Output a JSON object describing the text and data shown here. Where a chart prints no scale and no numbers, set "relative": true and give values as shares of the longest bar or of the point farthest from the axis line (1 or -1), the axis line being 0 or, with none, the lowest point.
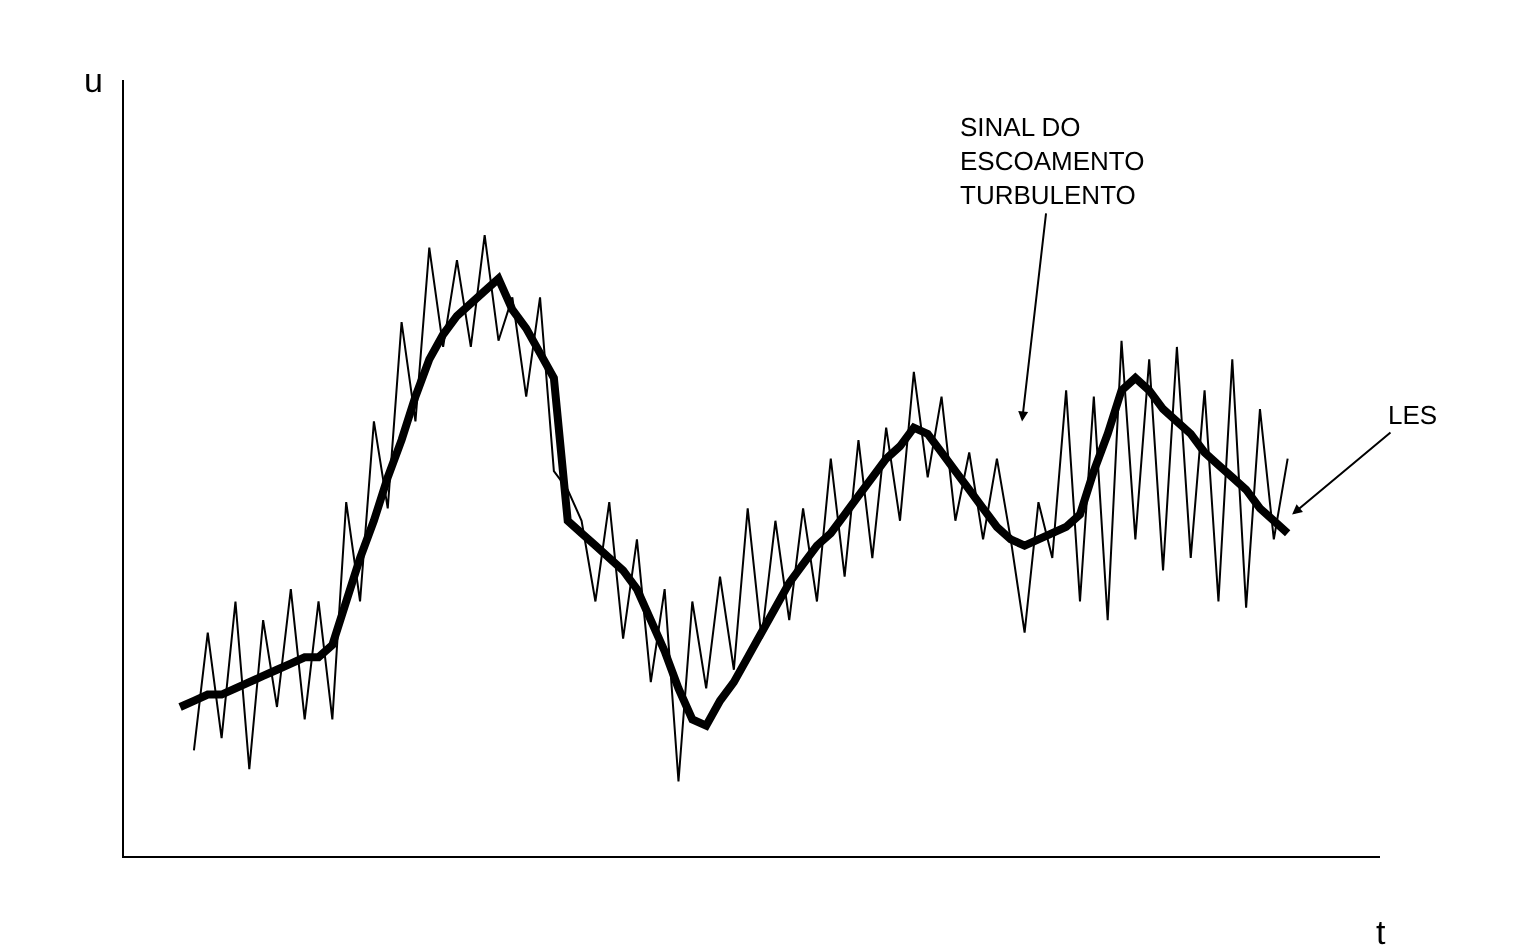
{
  "chart_data": {
    "type": "line",
    "relative": true,
    "xlabel": "t",
    "ylabel": "u",
    "legend": false,
    "marker": "none",
    "categories": [
      null,
      null,
      null,
      null,
      null,
      null,
      null,
      null,
      null,
      null,
      null,
      null,
      null,
      null,
      null,
      null,
      null,
      null,
      null,
      null,
      null,
      null,
      null,
      null,
      null,
      null,
      null,
      null,
      null,
      null,
      null,
      null,
      null,
      null,
      null,
      null,
      null,
      null,
      null,
      null,
      null,
      null,
      null,
      null,
      null,
      null,
      null,
      null,
      null,
      null,
      null,
      null,
      null,
      null,
      null,
      null,
      null,
      null,
      null,
      null,
      null,
      null,
      null,
      null,
      null,
      null,
      null,
      null,
      null,
      null,
      null,
      null,
      null,
      null,
      null,
      null,
      null,
      null,
      null,
      null,
      null
    ],
    "series": [
      {
        "color": "#000000",
        "line_style": "solid",
        "values": [
          null,
          0.17,
          0.36,
          0.19,
          0.41,
          0.14,
          0.38,
          0.24,
          0.43,
          0.22,
          0.41,
          0.22,
          0.57,
          0.41,
          0.7,
          0.56,
          0.86,
          0.7,
          0.98,
          0.82,
          0.96,
          0.82,
          1.0,
          0.83,
          0.9,
          0.74,
          0.9,
          0.62,
          0.59,
          0.54,
          0.41,
          0.57,
          0.35,
          0.51,
          0.28,
          0.43,
          0.12,
          0.41,
          0.27,
          0.45,
          0.3,
          0.56,
          0.35,
          0.54,
          0.38,
          0.56,
          0.41,
          0.64,
          0.45,
          0.67,
          0.48,
          0.69,
          0.54,
          0.78,
          0.61,
          0.74,
          0.54,
          0.65,
          0.51,
          0.64,
          0.51,
          0.36,
          0.57,
          0.48,
          0.75,
          0.41,
          0.74,
          0.38,
          0.83,
          0.51,
          0.8,
          0.46,
          0.82,
          0.48,
          0.75,
          0.41,
          0.8,
          0.4,
          0.72,
          0.51,
          0.64
        ]
      },
      {
        "color": "#000000",
        "line_style": "solid",
        "values": [
          0.24,
          0.25,
          0.26,
          0.26,
          0.27,
          0.28,
          0.29,
          0.3,
          0.31,
          0.32,
          0.32,
          0.34,
          0.41,
          0.48,
          0.54,
          0.61,
          0.67,
          0.74,
          0.8,
          0.84,
          0.87,
          0.89,
          0.91,
          0.93,
          0.88,
          0.85,
          0.81,
          0.77,
          0.54,
          0.52,
          0.5,
          0.48,
          0.46,
          0.43,
          0.38,
          0.33,
          0.27,
          0.22,
          0.21,
          0.25,
          0.28,
          0.32,
          0.36,
          0.4,
          0.44,
          0.47,
          0.5,
          0.52,
          0.55,
          0.58,
          0.61,
          0.64,
          0.66,
          0.69,
          0.68,
          0.65,
          0.62,
          0.59,
          0.56,
          0.53,
          0.51,
          0.5,
          0.51,
          0.52,
          0.53,
          0.55,
          0.62,
          0.68,
          0.75,
          0.77,
          0.75,
          0.72,
          0.7,
          0.68,
          0.65,
          0.63,
          0.61,
          0.59,
          0.56,
          0.54,
          0.52
        ]
      }
    ],
    "annotations": [
      "SINAL DO\nESCOAMENTO\nTURBULENTO",
      "LES"
    ]
  }
}
